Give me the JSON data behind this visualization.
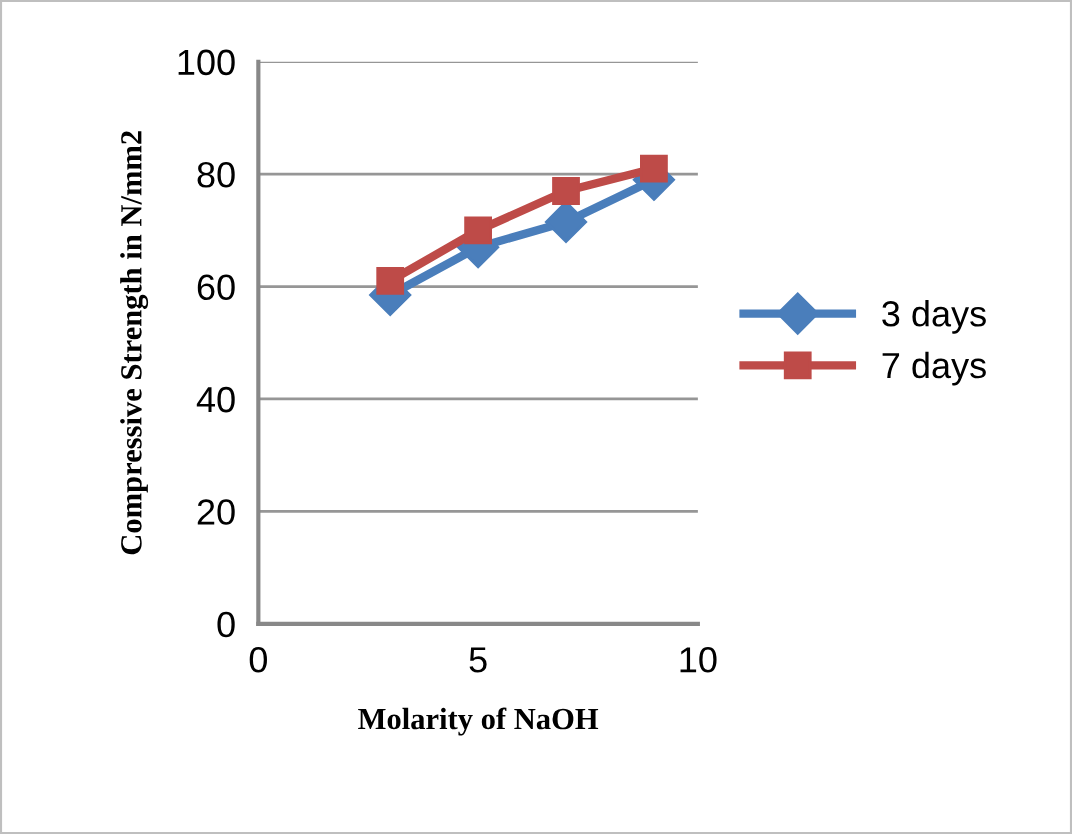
{
  "chart_data": {
    "type": "line",
    "xlabel": "Molarity of NaOH",
    "ylabel": "Compressive Strength in N/mm2",
    "x": [
      3,
      5,
      7,
      9
    ],
    "series": [
      {
        "name": "3 days",
        "color": "#4a7ebb",
        "values": [
          58.5,
          67,
          71.5,
          79
        ],
        "marker": "diamond"
      },
      {
        "name": "7 days",
        "color": "#be4b48",
        "values": [
          61,
          70,
          77,
          81
        ],
        "marker": "square"
      }
    ],
    "xlim": [
      0,
      10
    ],
    "xticks": [
      0,
      5,
      10
    ],
    "ylim": [
      0,
      100
    ],
    "yticks": [
      0,
      20,
      40,
      60,
      80,
      100
    ],
    "grid": "y",
    "legend": "right",
    "line_style": "solid"
  }
}
